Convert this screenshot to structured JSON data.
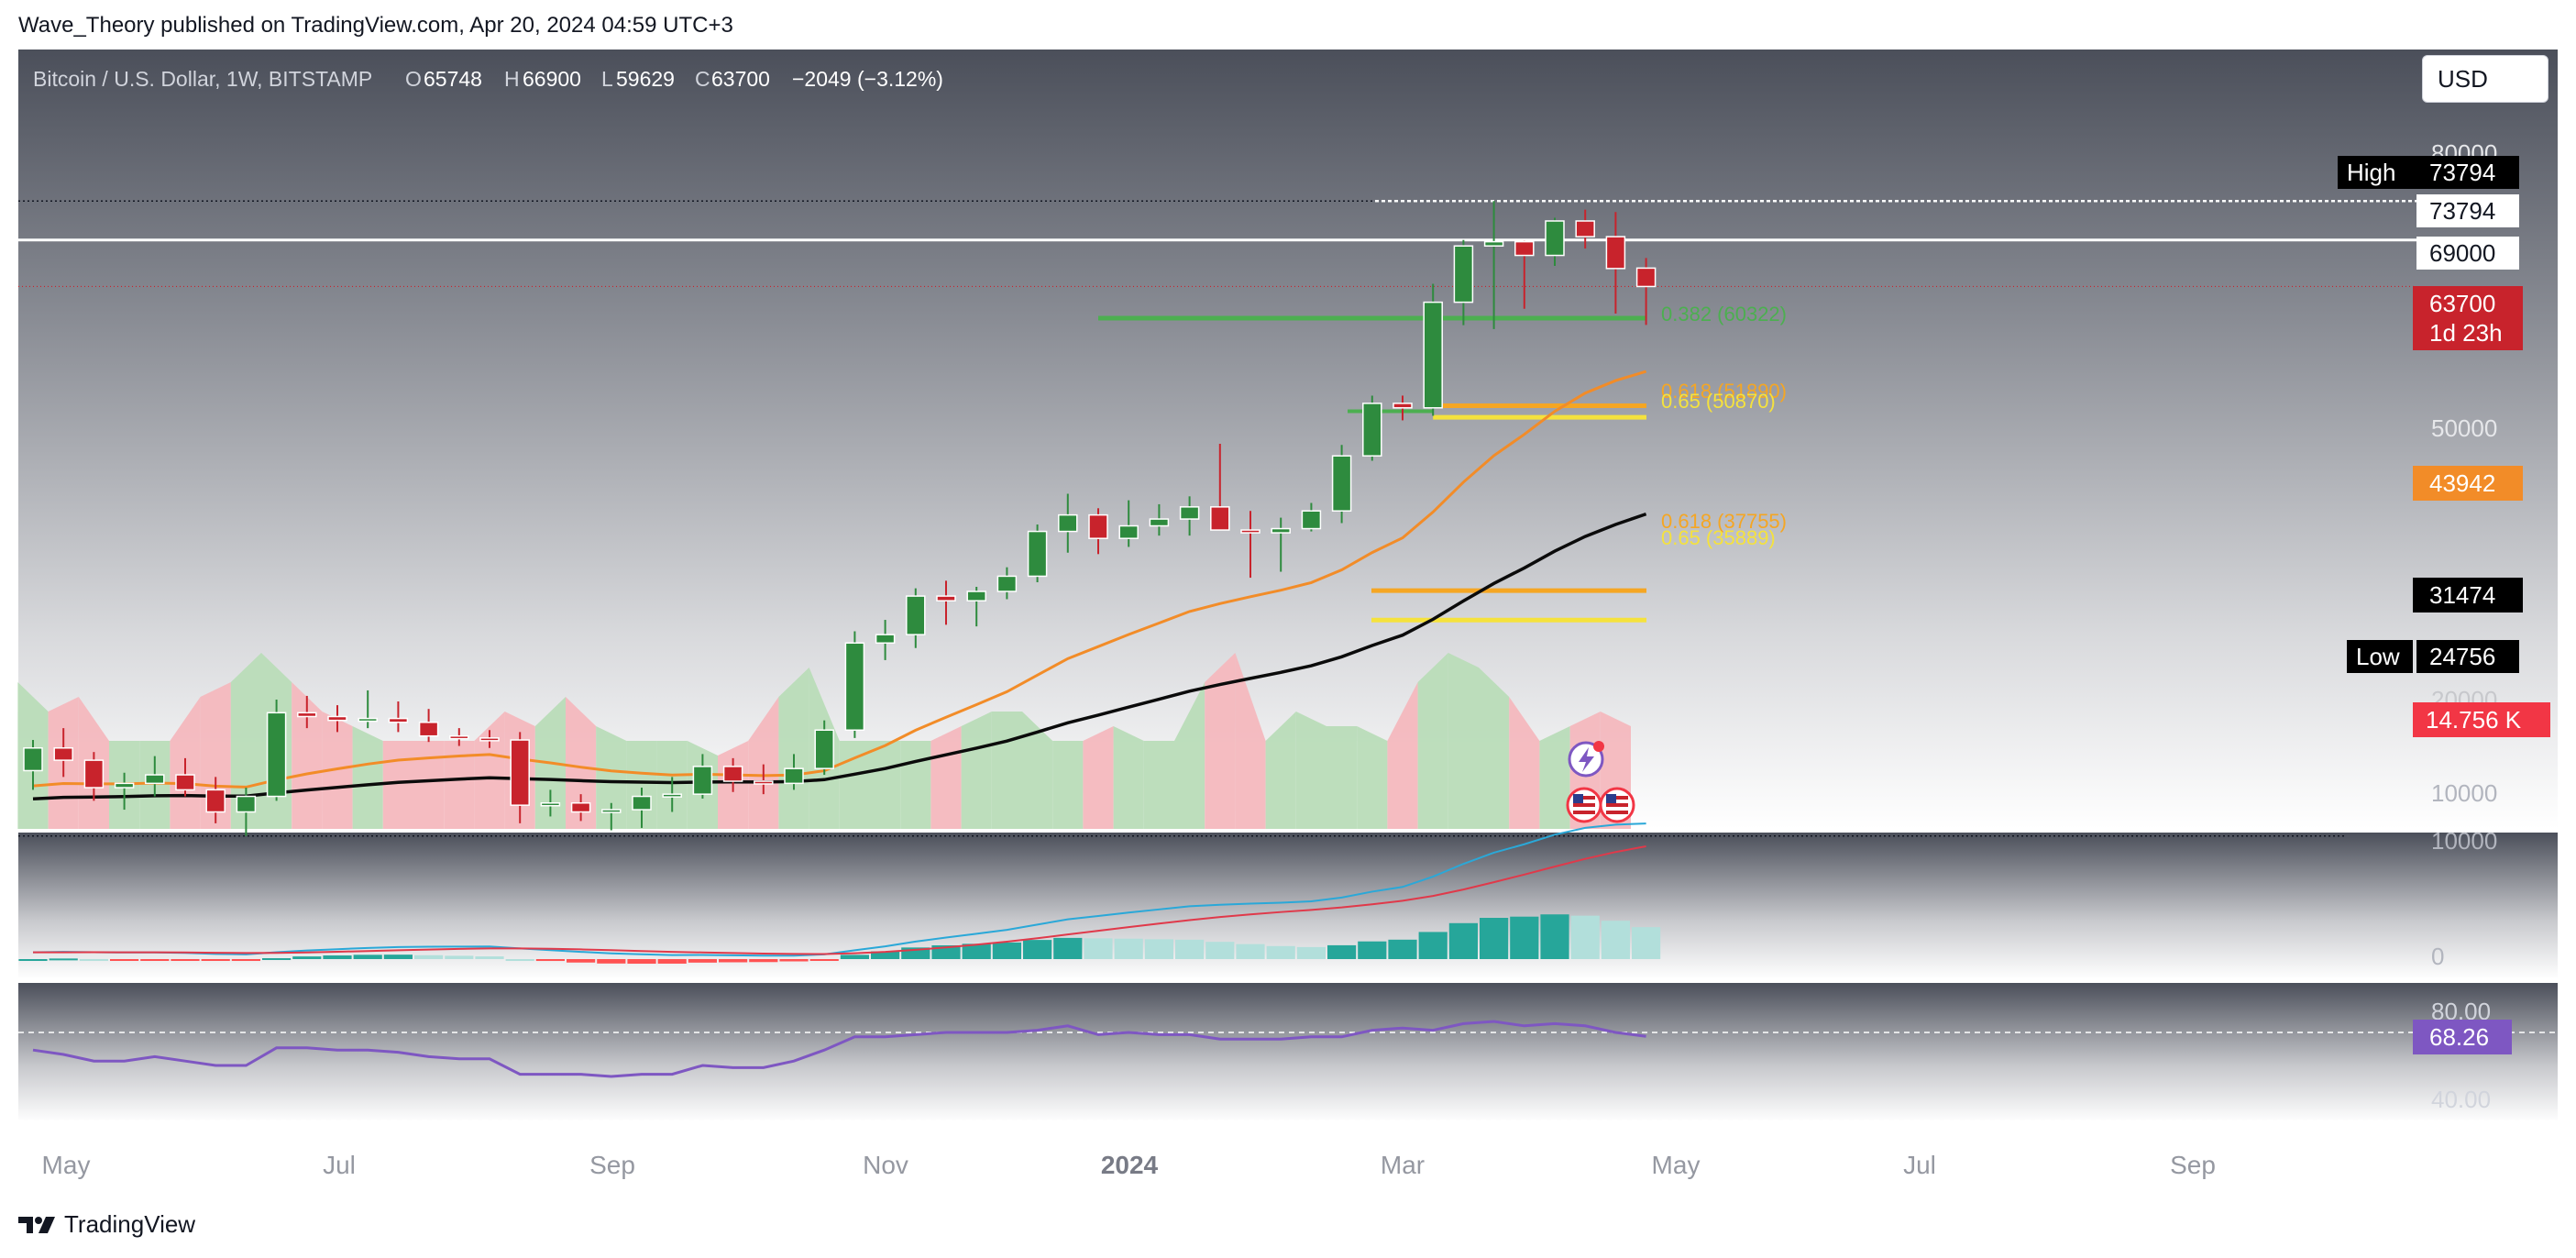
{
  "header": {
    "published": "Wave_Theory published on TradingView.com, Apr 20, 2024 04:59 UTC+3"
  },
  "footer": {
    "brand": "TradingView"
  },
  "currency": "USD",
  "legend": {
    "symbol": "Bitcoin / U.S. Dollar, 1W, BITSTAMP",
    "o_label": "O",
    "o": "65748",
    "h_label": "H",
    "h": "66900",
    "l_label": "L",
    "l": "59629",
    "c_label": "C",
    "c": "63700",
    "change": "−2049 (−3.12%)"
  },
  "price_axis_ticks": [
    "80000",
    "50000",
    "20000",
    "10000"
  ],
  "markers": {
    "high_label": "High",
    "high_value": "73794",
    "line_73794": "73794",
    "line_69000": "69000",
    "last_price": "63700",
    "countdown": "1d 23h",
    "ema_orange": "43942",
    "ema_black": "31474",
    "low_label": "Low",
    "low_value": "24756",
    "volume": "14.756 K"
  },
  "fib_labels": {
    "f382": "0.382 (60322)",
    "f618a": "0.618 (51890)",
    "f650a": "0.65 (50870)",
    "f618b": "0.618 (37755)",
    "f650b": "0.65 (35889)"
  },
  "macd_axis": [
    "10000",
    "0"
  ],
  "rsi_axis": [
    "80.00",
    "40.00"
  ],
  "rsi_value": "68.26",
  "x_axis": [
    "May",
    "Jul",
    "Sep",
    "Nov",
    "2024",
    "Mar",
    "May",
    "Jul",
    "Sep"
  ],
  "colors": {
    "up": "#2e8b3e",
    "down": "#c8232c",
    "ema_orange": "#f28c28",
    "ema_black": "#0b0b0b",
    "rsi": "#7e57c2",
    "fib_green": "#4caf50",
    "fib_orange": "#f5a623",
    "fib_yellow": "#f5e23d"
  },
  "chart_data": {
    "type": "candlestick",
    "title": "Bitcoin / U.S. Dollar, 1W, BITSTAMP",
    "timeframe": "1W",
    "price_scale": "log",
    "candles": [
      [
        27700,
        29200,
        26800,
        28800
      ],
      [
        28800,
        29800,
        27400,
        28200
      ],
      [
        28200,
        28600,
        26300,
        26900
      ],
      [
        26900,
        27600,
        25900,
        27100
      ],
      [
        27100,
        28400,
        26500,
        27500
      ],
      [
        27500,
        28300,
        26500,
        26800
      ],
      [
        26800,
        27400,
        25300,
        25800
      ],
      [
        25800,
        26900,
        24756,
        26500
      ],
      [
        26500,
        31300,
        26300,
        30600
      ],
      [
        30600,
        31500,
        29800,
        30400
      ],
      [
        30400,
        31000,
        29600,
        30200
      ],
      [
        30200,
        31800,
        29800,
        30300
      ],
      [
        30300,
        31200,
        29600,
        30100
      ],
      [
        30100,
        30800,
        29100,
        29400
      ],
      [
        29400,
        29800,
        28900,
        29300
      ],
      [
        29300,
        29700,
        28800,
        29200
      ],
      [
        29200,
        29600,
        25300,
        26100
      ],
      [
        26100,
        26800,
        25600,
        26200
      ],
      [
        26200,
        26600,
        25400,
        25800
      ],
      [
        25800,
        26200,
        25000,
        25900
      ],
      [
        25900,
        26900,
        25100,
        26500
      ],
      [
        26500,
        27400,
        25800,
        26600
      ],
      [
        26600,
        28500,
        26400,
        27900
      ],
      [
        27900,
        28300,
        26700,
        27200
      ],
      [
        27200,
        28000,
        26600,
        27100
      ],
      [
        27100,
        28500,
        26800,
        27800
      ],
      [
        27800,
        30200,
        27500,
        29700
      ],
      [
        29700,
        35200,
        29300,
        34500
      ],
      [
        34500,
        35900,
        33500,
        35000
      ],
      [
        35000,
        37900,
        34200,
        37400
      ],
      [
        37400,
        38400,
        35600,
        37100
      ],
      [
        37100,
        38000,
        35500,
        37700
      ],
      [
        37700,
        39300,
        37200,
        38700
      ],
      [
        38700,
        42300,
        38300,
        41800
      ],
      [
        41800,
        44600,
        40300,
        43000
      ],
      [
        43000,
        43500,
        40200,
        41300
      ],
      [
        41300,
        44100,
        40700,
        42200
      ],
      [
        42200,
        43800,
        41500,
        42700
      ],
      [
        42700,
        44400,
        41500,
        43600
      ],
      [
        43600,
        48600,
        42100,
        41900
      ],
      [
        41900,
        43300,
        38600,
        41700
      ],
      [
        41700,
        42800,
        39000,
        42000
      ],
      [
        42000,
        43900,
        41800,
        43300
      ],
      [
        43300,
        48500,
        42400,
        47600
      ],
      [
        47600,
        52800,
        47200,
        52100
      ],
      [
        52100,
        52800,
        50600,
        51700
      ],
      [
        51700,
        64000,
        51000,
        62000
      ],
      [
        62000,
        69000,
        59600,
        68300
      ],
      [
        68300,
        73794,
        59200,
        68800
      ],
      [
        68800,
        68900,
        61300,
        67200
      ],
      [
        67200,
        71700,
        66000,
        71300
      ],
      [
        71300,
        72700,
        68000,
        69400
      ],
      [
        69400,
        72400,
        60800,
        65700
      ],
      [
        65748,
        66900,
        59629,
        63700
      ]
    ],
    "candle_fields": [
      "open",
      "high",
      "low",
      "close"
    ],
    "ema_orange": {
      "name": "EMA",
      "last": 43942
    },
    "ema_black": {
      "name": "EMA",
      "last": 31474
    },
    "horizontal_levels": [
      73794,
      69000,
      63700,
      24756
    ],
    "fibonacci": [
      {
        "label": "0.382",
        "value": 60322
      },
      {
        "label": "0.618",
        "value": 51890
      },
      {
        "label": "0.65",
        "value": 50870
      },
      {
        "label": "0.618",
        "value": 37755
      },
      {
        "label": "0.65",
        "value": 35889
      }
    ],
    "volume_last": "14.756 K",
    "rsi": [
      62,
      60,
      57,
      57,
      59,
      57,
      55,
      55,
      63,
      63,
      62,
      62,
      61,
      59,
      58,
      58,
      51,
      51,
      51,
      50,
      51,
      51,
      55,
      54,
      54,
      57,
      62,
      68,
      68,
      69,
      70,
      70,
      70,
      71,
      73,
      69,
      70,
      69,
      69,
      67,
      67,
      67,
      68,
      68,
      71,
      72,
      71,
      74,
      75,
      73,
      74,
      73,
      70,
      68.26
    ],
    "x_axis_labels": [
      "May",
      "Jul",
      "Sep",
      "Nov",
      "2024",
      "Mar",
      "May",
      "Jul",
      "Sep"
    ]
  }
}
